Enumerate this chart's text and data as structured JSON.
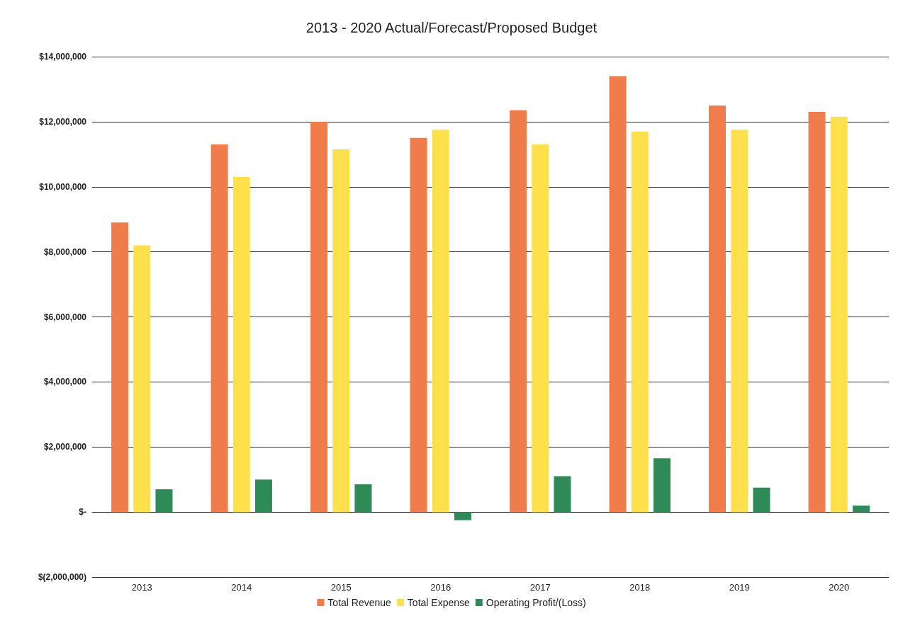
{
  "chart_data": {
    "type": "bar",
    "title": "2013 - 2020 Actual/Forecast/Proposed Budget",
    "categories": [
      "2013",
      "2014",
      "2015",
      "2016",
      "2017",
      "2018",
      "2019",
      "2020"
    ],
    "series": [
      {
        "name": "Total Revenue",
        "color": "#f07c4c",
        "values": [
          8900000,
          11300000,
          12000000,
          11500000,
          12350000,
          13400000,
          12500000,
          12300000
        ]
      },
      {
        "name": "Total Expense",
        "color": "#fde04c",
        "values": [
          8200000,
          10300000,
          11150000,
          11750000,
          11300000,
          11700000,
          11750000,
          12150000
        ]
      },
      {
        "name": "Operating Profit/(Loss)",
        "color": "#2e8b57",
        "values": [
          700000,
          1000000,
          850000,
          -250000,
          1100000,
          1650000,
          750000,
          200000
        ]
      }
    ],
    "ylim": [
      -2000000,
      14000000
    ],
    "yticks": [
      {
        "value": -2000000,
        "label": "$(2,000,000)"
      },
      {
        "value": 0,
        "label": "$-"
      },
      {
        "value": 2000000,
        "label": "$2,000,000"
      },
      {
        "value": 4000000,
        "label": "$4,000,000"
      },
      {
        "value": 6000000,
        "label": "$6,000,000"
      },
      {
        "value": 8000000,
        "label": "$8,000,000"
      },
      {
        "value": 10000000,
        "label": "$10,000,000"
      },
      {
        "value": 12000000,
        "label": "$12,000,000"
      },
      {
        "value": 14000000,
        "label": "$14,000,000"
      }
    ],
    "grid": "y",
    "legend": "bottom"
  }
}
